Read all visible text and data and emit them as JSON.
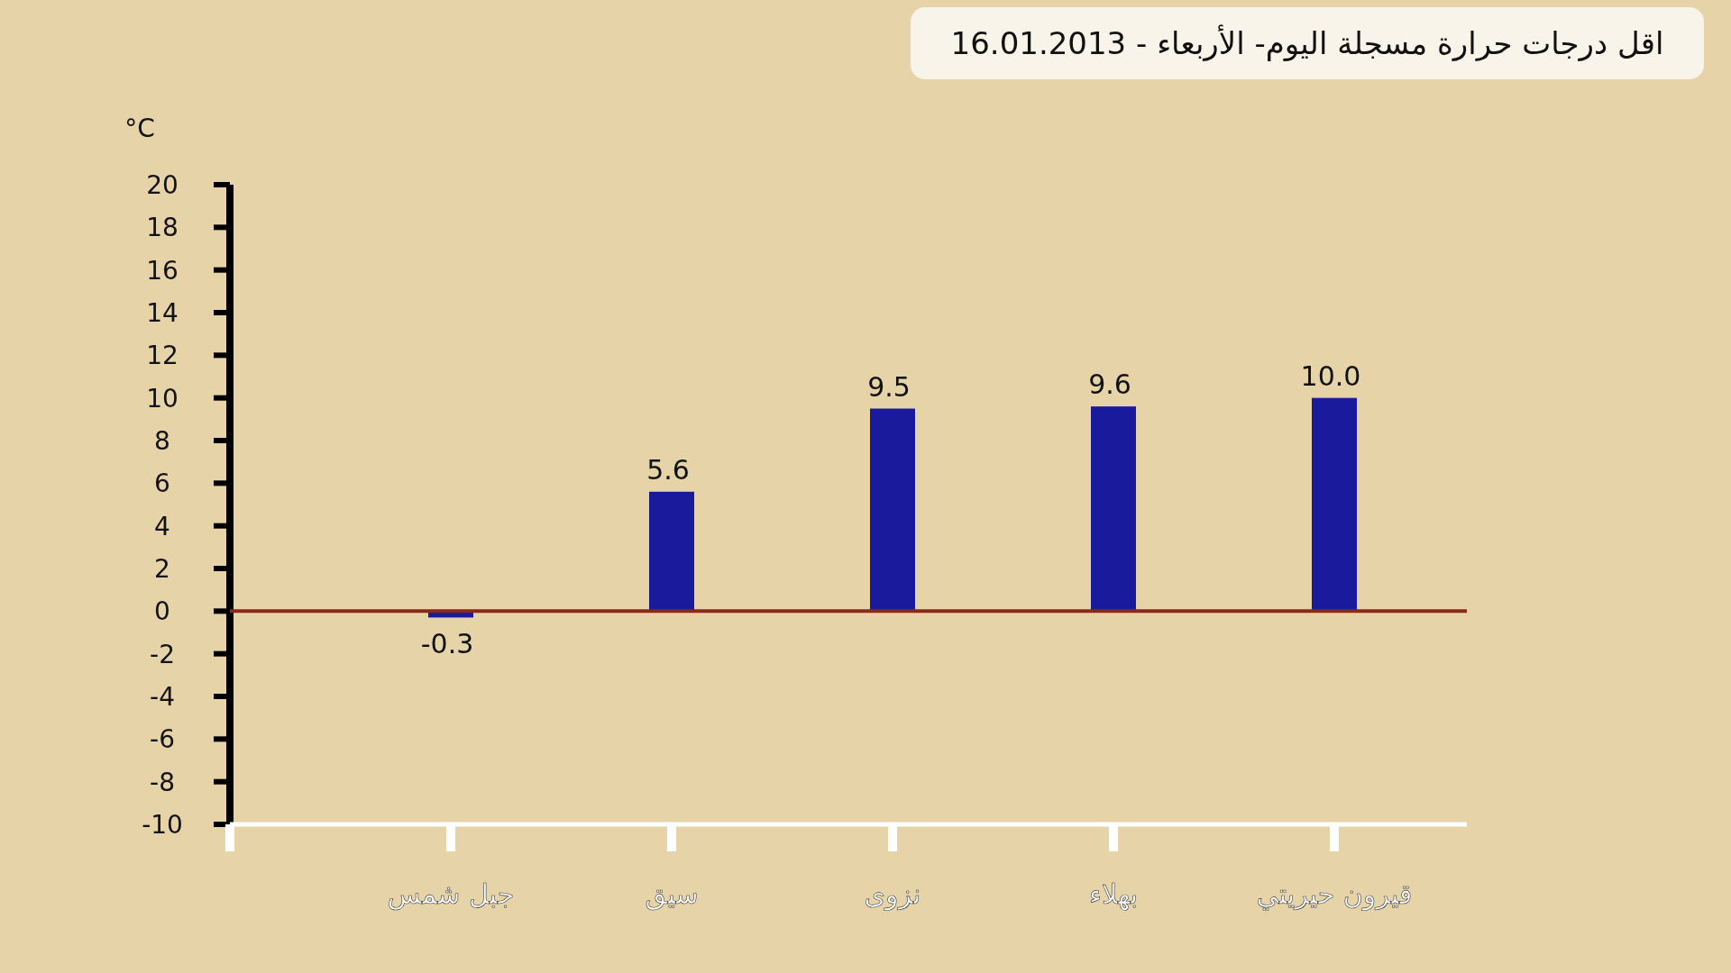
{
  "chart_data": {
    "type": "bar",
    "title": "اقل درجات حرارة مسجلة اليوم- الأربعاء - 16.01.2013",
    "ylabel": "°C",
    "categories": [
      "جبل شمس",
      "سيق",
      "نزوى",
      "بهلاء",
      "قيرون حيريتي"
    ],
    "series": [
      {
        "color": "#1a1a9c",
        "values": [
          -0.3,
          5.6,
          9.5,
          9.6,
          10.0
        ]
      }
    ],
    "value_labels": [
      "-0.3",
      "5.6",
      "9.5",
      "9.6",
      "10.0"
    ],
    "ylim": [
      -10,
      20
    ],
    "yticks": [
      -10,
      -8,
      -6,
      -4,
      -2,
      0,
      2,
      4,
      6,
      8,
      10,
      12,
      14,
      16,
      18,
      20
    ],
    "ref_lines": [
      {
        "axis": "y",
        "value": 0,
        "color": "#8b2a1a"
      }
    ],
    "grid": false
  }
}
